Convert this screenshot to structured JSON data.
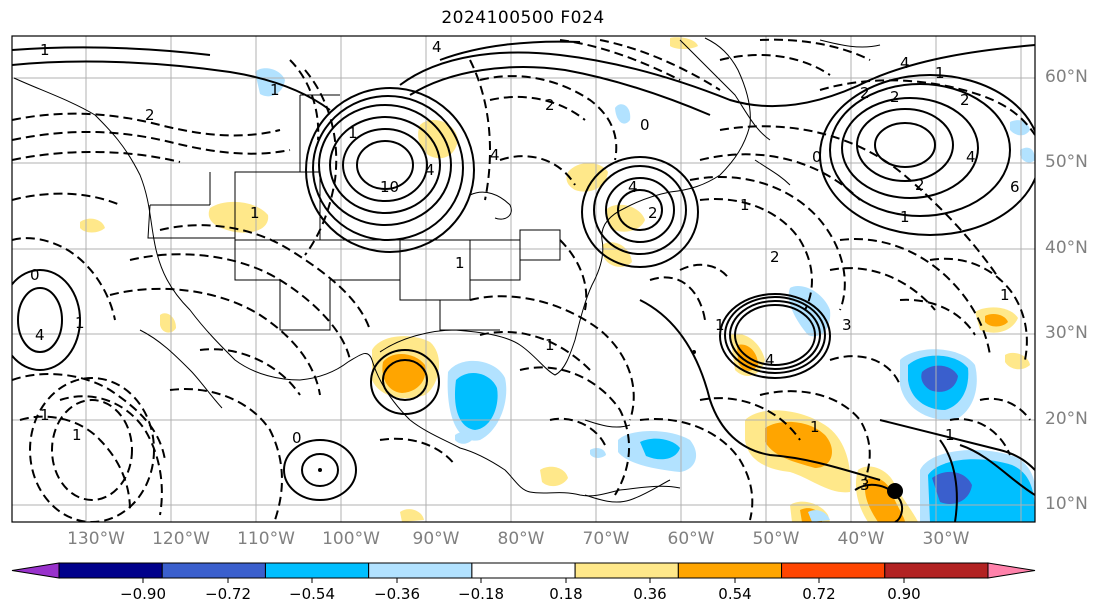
{
  "title": "2024100500 F024",
  "lat_labels": [
    "60°N",
    "50°N",
    "40°N",
    "30°N",
    "20°N",
    "10°N"
  ],
  "lon_labels": [
    "130°W",
    "120°W",
    "110°W",
    "100°W",
    "90°W",
    "80°W",
    "70°W",
    "60°W",
    "50°W",
    "40°W",
    "30°W"
  ],
  "colorbar": {
    "colors": [
      "#9932CC",
      "#00008B",
      "#3A5FCD",
      "#00BFFF",
      "#B2E2FF",
      "#FFFFFF",
      "#FFE88A",
      "#FFA500",
      "#FF4500",
      "#B22222",
      "#FF82AB"
    ],
    "labels": [
      "−0.90",
      "−0.72",
      "−0.54",
      "−0.36",
      "−0.18",
      "0.18",
      "0.36",
      "0.54",
      "0.72",
      "0.90"
    ]
  },
  "contour_labels": [
    "1",
    "4",
    "2",
    "1",
    "1",
    "10",
    "4",
    "4",
    "2",
    "0",
    "1",
    "4",
    "2",
    "0",
    "1",
    "2",
    "4",
    "2",
    "1",
    "2",
    "1",
    "3",
    "2",
    "1",
    "4",
    "0",
    "4",
    "1",
    "1",
    "1",
    "1",
    "1",
    "0",
    "6",
    "4",
    "2",
    "3",
    "1",
    "1",
    "1"
  ]
}
